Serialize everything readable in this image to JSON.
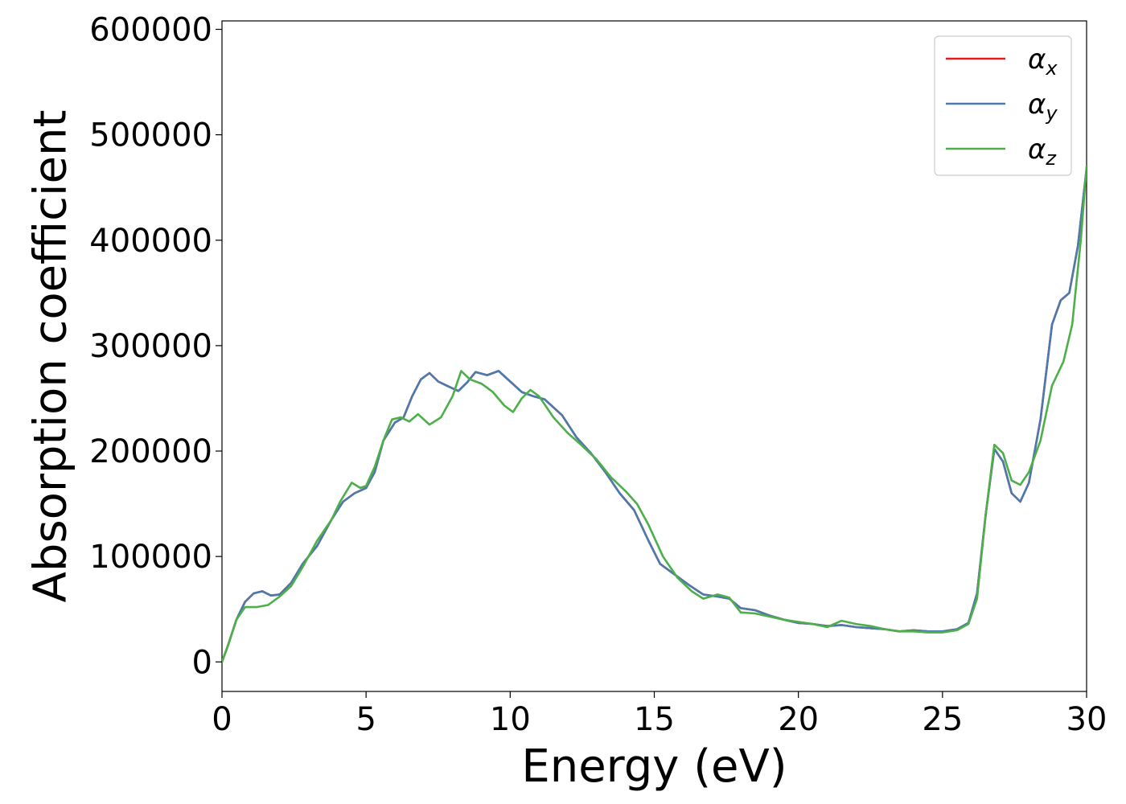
{
  "chart_data": {
    "type": "line",
    "title": "",
    "xlabel": "Energy (eV)",
    "ylabel": "Absorption coefficient",
    "xlim": [
      0,
      30
    ],
    "ylim": [
      -28000,
      608000
    ],
    "xticks": [
      0,
      5,
      10,
      15,
      20,
      25,
      30
    ],
    "xtick_labels": [
      "0",
      "5",
      "10",
      "15",
      "20",
      "25",
      "30"
    ],
    "yticks": [
      0,
      100000,
      200000,
      300000,
      400000,
      500000,
      600000
    ],
    "ytick_labels": [
      "0",
      "100000",
      "200000",
      "300000",
      "400000",
      "500000",
      "600000"
    ],
    "grid": false,
    "legend_position": "top-right",
    "series": [
      {
        "name": "α",
        "subscript": "x",
        "color": "#e41a1c",
        "points": [
          [
            0,
            0
          ],
          [
            0.2,
            15000
          ],
          [
            0.5,
            40000
          ],
          [
            0.8,
            57000
          ],
          [
            1.1,
            65000
          ],
          [
            1.4,
            67000
          ],
          [
            1.7,
            63000
          ],
          [
            2.0,
            64000
          ],
          [
            2.4,
            75000
          ],
          [
            2.8,
            93000
          ],
          [
            3.3,
            110000
          ],
          [
            3.8,
            135000
          ],
          [
            4.2,
            152000
          ],
          [
            4.6,
            160000
          ],
          [
            5.0,
            165000
          ],
          [
            5.3,
            180000
          ],
          [
            5.6,
            210000
          ],
          [
            6.0,
            227000
          ],
          [
            6.3,
            232000
          ],
          [
            6.6,
            252000
          ],
          [
            6.9,
            268000
          ],
          [
            7.2,
            274000
          ],
          [
            7.5,
            266000
          ],
          [
            7.8,
            262000
          ],
          [
            8.2,
            257000
          ],
          [
            8.5,
            265000
          ],
          [
            8.8,
            275000
          ],
          [
            9.2,
            272000
          ],
          [
            9.6,
            276000
          ],
          [
            10.0,
            266000
          ],
          [
            10.4,
            256000
          ],
          [
            10.8,
            252000
          ],
          [
            11.2,
            249000
          ],
          [
            11.8,
            234000
          ],
          [
            12.3,
            213000
          ],
          [
            12.8,
            198000
          ],
          [
            13.3,
            180000
          ],
          [
            13.8,
            160000
          ],
          [
            14.3,
            144000
          ],
          [
            14.8,
            115000
          ],
          [
            15.2,
            93000
          ],
          [
            15.7,
            83000
          ],
          [
            16.2,
            73000
          ],
          [
            16.7,
            64000
          ],
          [
            17.2,
            62000
          ],
          [
            17.6,
            60000
          ],
          [
            18.0,
            51000
          ],
          [
            18.5,
            49000
          ],
          [
            19.0,
            44000
          ],
          [
            19.5,
            40000
          ],
          [
            20.0,
            37000
          ],
          [
            20.5,
            36000
          ],
          [
            21.0,
            34000
          ],
          [
            21.5,
            35000
          ],
          [
            22.0,
            33000
          ],
          [
            22.5,
            32000
          ],
          [
            23.0,
            31000
          ],
          [
            23.5,
            29000
          ],
          [
            24.0,
            30000
          ],
          [
            24.5,
            29000
          ],
          [
            25.0,
            29000
          ],
          [
            25.5,
            31000
          ],
          [
            25.9,
            37000
          ],
          [
            26.2,
            65000
          ],
          [
            26.5,
            140000
          ],
          [
            26.8,
            202000
          ],
          [
            27.1,
            190000
          ],
          [
            27.4,
            160000
          ],
          [
            27.7,
            152000
          ],
          [
            28.0,
            170000
          ],
          [
            28.4,
            230000
          ],
          [
            28.8,
            320000
          ],
          [
            29.1,
            343000
          ],
          [
            29.4,
            350000
          ],
          [
            29.7,
            395000
          ],
          [
            30.0,
            468000
          ]
        ]
      },
      {
        "name": "α",
        "subscript": "y",
        "color": "#4a7aae",
        "points": [
          [
            0,
            0
          ],
          [
            0.2,
            15000
          ],
          [
            0.5,
            40000
          ],
          [
            0.8,
            57000
          ],
          [
            1.1,
            65000
          ],
          [
            1.4,
            67000
          ],
          [
            1.7,
            63000
          ],
          [
            2.0,
            64000
          ],
          [
            2.4,
            75000
          ],
          [
            2.8,
            93000
          ],
          [
            3.3,
            110000
          ],
          [
            3.8,
            135000
          ],
          [
            4.2,
            152000
          ],
          [
            4.6,
            160000
          ],
          [
            5.0,
            165000
          ],
          [
            5.3,
            180000
          ],
          [
            5.6,
            210000
          ],
          [
            6.0,
            227000
          ],
          [
            6.3,
            232000
          ],
          [
            6.6,
            252000
          ],
          [
            6.9,
            268000
          ],
          [
            7.2,
            274000
          ],
          [
            7.5,
            266000
          ],
          [
            7.8,
            262000
          ],
          [
            8.2,
            257000
          ],
          [
            8.5,
            265000
          ],
          [
            8.8,
            275000
          ],
          [
            9.2,
            272000
          ],
          [
            9.6,
            276000
          ],
          [
            10.0,
            266000
          ],
          [
            10.4,
            256000
          ],
          [
            10.8,
            252000
          ],
          [
            11.2,
            249000
          ],
          [
            11.8,
            234000
          ],
          [
            12.3,
            213000
          ],
          [
            12.8,
            198000
          ],
          [
            13.3,
            180000
          ],
          [
            13.8,
            160000
          ],
          [
            14.3,
            144000
          ],
          [
            14.8,
            115000
          ],
          [
            15.2,
            93000
          ],
          [
            15.7,
            83000
          ],
          [
            16.2,
            73000
          ],
          [
            16.7,
            64000
          ],
          [
            17.2,
            62000
          ],
          [
            17.6,
            60000
          ],
          [
            18.0,
            51000
          ],
          [
            18.5,
            49000
          ],
          [
            19.0,
            44000
          ],
          [
            19.5,
            40000
          ],
          [
            20.0,
            37000
          ],
          [
            20.5,
            36000
          ],
          [
            21.0,
            34000
          ],
          [
            21.5,
            35000
          ],
          [
            22.0,
            33000
          ],
          [
            22.5,
            32000
          ],
          [
            23.0,
            31000
          ],
          [
            23.5,
            29000
          ],
          [
            24.0,
            30000
          ],
          [
            24.5,
            29000
          ],
          [
            25.0,
            29000
          ],
          [
            25.5,
            31000
          ],
          [
            25.9,
            37000
          ],
          [
            26.2,
            65000
          ],
          [
            26.5,
            140000
          ],
          [
            26.8,
            202000
          ],
          [
            27.1,
            190000
          ],
          [
            27.4,
            160000
          ],
          [
            27.7,
            152000
          ],
          [
            28.0,
            170000
          ],
          [
            28.4,
            230000
          ],
          [
            28.8,
            320000
          ],
          [
            29.1,
            343000
          ],
          [
            29.4,
            350000
          ],
          [
            29.7,
            395000
          ],
          [
            30.0,
            468000
          ]
        ]
      },
      {
        "name": "α",
        "subscript": "z",
        "color": "#4daf4a",
        "points": [
          [
            0,
            0
          ],
          [
            0.2,
            15000
          ],
          [
            0.5,
            40000
          ],
          [
            0.8,
            52000
          ],
          [
            1.2,
            52000
          ],
          [
            1.6,
            54000
          ],
          [
            2.0,
            62000
          ],
          [
            2.4,
            72000
          ],
          [
            2.8,
            90000
          ],
          [
            3.3,
            115000
          ],
          [
            3.8,
            135000
          ],
          [
            4.1,
            152000
          ],
          [
            4.5,
            170000
          ],
          [
            4.8,
            165000
          ],
          [
            5.0,
            167000
          ],
          [
            5.3,
            185000
          ],
          [
            5.6,
            210000
          ],
          [
            5.9,
            230000
          ],
          [
            6.2,
            232000
          ],
          [
            6.5,
            228000
          ],
          [
            6.8,
            235000
          ],
          [
            7.2,
            225000
          ],
          [
            7.6,
            232000
          ],
          [
            8.0,
            252000
          ],
          [
            8.3,
            276000
          ],
          [
            8.6,
            268000
          ],
          [
            9.0,
            264000
          ],
          [
            9.4,
            256000
          ],
          [
            9.8,
            243000
          ],
          [
            10.1,
            237000
          ],
          [
            10.4,
            250000
          ],
          [
            10.7,
            258000
          ],
          [
            11.0,
            252000
          ],
          [
            11.5,
            232000
          ],
          [
            12.0,
            217000
          ],
          [
            12.5,
            205000
          ],
          [
            13.0,
            192000
          ],
          [
            13.5,
            175000
          ],
          [
            14.0,
            162000
          ],
          [
            14.4,
            150000
          ],
          [
            14.8,
            130000
          ],
          [
            15.3,
            100000
          ],
          [
            15.8,
            80000
          ],
          [
            16.3,
            67000
          ],
          [
            16.7,
            60000
          ],
          [
            17.2,
            64000
          ],
          [
            17.6,
            61000
          ],
          [
            18.0,
            47000
          ],
          [
            18.5,
            46000
          ],
          [
            19.0,
            43000
          ],
          [
            19.5,
            40000
          ],
          [
            20.0,
            38000
          ],
          [
            20.5,
            36000
          ],
          [
            21.0,
            33000
          ],
          [
            21.5,
            39000
          ],
          [
            22.0,
            36000
          ],
          [
            22.5,
            34000
          ],
          [
            23.0,
            31000
          ],
          [
            23.5,
            29000
          ],
          [
            24.0,
            29000
          ],
          [
            24.5,
            28000
          ],
          [
            25.0,
            28000
          ],
          [
            25.5,
            30000
          ],
          [
            25.9,
            36000
          ],
          [
            26.2,
            60000
          ],
          [
            26.5,
            140000
          ],
          [
            26.8,
            206000
          ],
          [
            27.1,
            198000
          ],
          [
            27.4,
            172000
          ],
          [
            27.7,
            168000
          ],
          [
            28.0,
            180000
          ],
          [
            28.4,
            210000
          ],
          [
            28.8,
            262000
          ],
          [
            29.2,
            285000
          ],
          [
            29.5,
            320000
          ],
          [
            29.8,
            400000
          ],
          [
            30.0,
            470000
          ]
        ]
      }
    ]
  }
}
